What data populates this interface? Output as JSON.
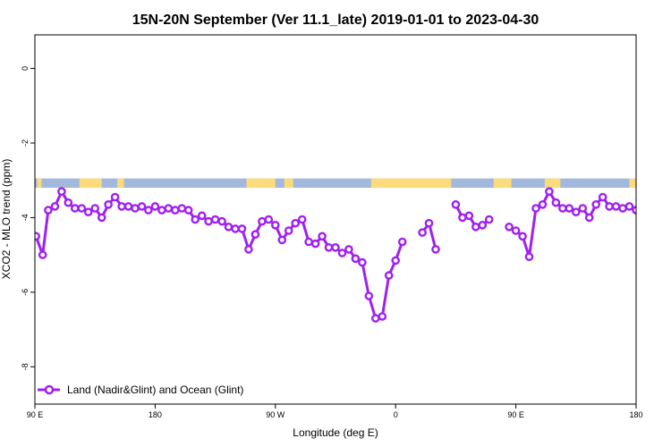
{
  "chart_data": {
    "type": "line",
    "title": "15N-20N September (Ver 11.1_late)   2019-01-01 to 2023-04-30",
    "xlabel": "Longitude (deg E)",
    "ylabel": "XCO2 - MLO trend (ppm)",
    "xlim": [
      -90,
      180
    ],
    "ylim": [
      -9,
      0.9
    ],
    "x_ticks": [
      {
        "value": -90,
        "label": "90 E"
      },
      {
        "value": -36,
        "label": "180"
      },
      {
        "value": 18,
        "label": "90 W"
      },
      {
        "value": 72,
        "label": "0"
      },
      {
        "value": 126,
        "label": "90 E"
      },
      {
        "value": 180,
        "label": "180"
      }
    ],
    "y_ticks": [
      {
        "value": 0,
        "label": "0"
      },
      {
        "value": -2,
        "label": "-2"
      },
      {
        "value": -4,
        "label": "-4"
      },
      {
        "value": -6,
        "label": "-6"
      },
      {
        "value": -8,
        "label": "-8"
      }
    ],
    "grid": false,
    "land_strip": {
      "y_top": -2.95,
      "y_bottom": -3.2,
      "ocean_color": "#a2b8dc",
      "land_color": "#fcdb7a",
      "land_ranges": [
        [
          -89,
          -87
        ],
        [
          -70,
          -60
        ],
        [
          -53,
          -50
        ],
        [
          5,
          18
        ],
        [
          22,
          26
        ],
        [
          61,
          97
        ],
        [
          116,
          124
        ],
        [
          139,
          146
        ],
        [
          177,
          180
        ]
      ]
    },
    "series": [
      {
        "name": "Land (Nadir&Glint) and Ocean (Glint)",
        "color": "#a020f0",
        "x": [
          -89.5,
          -86.5,
          -84,
          -81,
          -78,
          -75,
          -72,
          -69,
          -66,
          -63,
          -60,
          -57,
          -54,
          -51,
          -48,
          -45,
          -42,
          -39,
          -36,
          -33,
          -30,
          -27,
          -24,
          -21,
          -18,
          -15,
          -12,
          -9,
          -6,
          -3,
          0,
          3,
          6,
          9,
          12,
          15,
          18,
          21,
          24,
          27,
          30,
          33,
          36,
          39,
          42,
          45,
          48,
          51,
          54,
          57,
          60,
          63,
          66,
          69,
          72,
          75,
          78,
          84,
          87,
          90,
          null,
          96,
          99,
          102,
          105,
          108,
          111,
          114,
          null,
          120,
          123,
          126,
          129,
          132,
          135,
          138,
          141,
          144,
          147,
          150,
          153,
          156,
          159,
          162,
          165,
          168,
          171,
          174,
          177,
          180
        ],
        "y": [
          -4.5,
          -5.0,
          -3.8,
          -3.7,
          -3.3,
          -3.6,
          -3.75,
          -3.75,
          -3.85,
          -3.75,
          -4.0,
          -3.65,
          -3.45,
          -3.7,
          -3.7,
          -3.75,
          -3.7,
          -3.8,
          -3.7,
          -3.8,
          -3.75,
          -3.8,
          -3.75,
          -3.8,
          -4.05,
          -3.95,
          -4.1,
          -4.05,
          -4.1,
          -4.25,
          -4.3,
          -4.3,
          -4.85,
          -4.45,
          -4.1,
          -4.05,
          -4.2,
          -4.6,
          -4.35,
          -4.15,
          -4.05,
          -4.65,
          -4.7,
          -4.5,
          -4.8,
          -4.8,
          -4.95,
          -4.85,
          -5.1,
          -5.2,
          -6.1,
          -6.7,
          -6.65,
          -5.55,
          -5.15,
          -4.65,
          null,
          -4.4,
          -4.15,
          -4.85,
          -5.6,
          null,
          -3.65,
          -4.0,
          -3.95,
          -4.25,
          -4.2,
          -4.05,
          -4.3,
          null,
          -4.25,
          -4.35,
          -4.5,
          -5.05,
          -3.75,
          -3.65,
          -3.3,
          -3.6,
          -3.75,
          -3.75,
          -3.85,
          -3.75,
          -4.0,
          -3.65,
          -3.45,
          -3.7,
          -3.7,
          -3.75,
          -3.7,
          -3.8
        ]
      }
    ],
    "legend": {
      "position": "bottom-left",
      "label": "Land (Nadir&Glint) and Ocean (Glint)"
    }
  }
}
